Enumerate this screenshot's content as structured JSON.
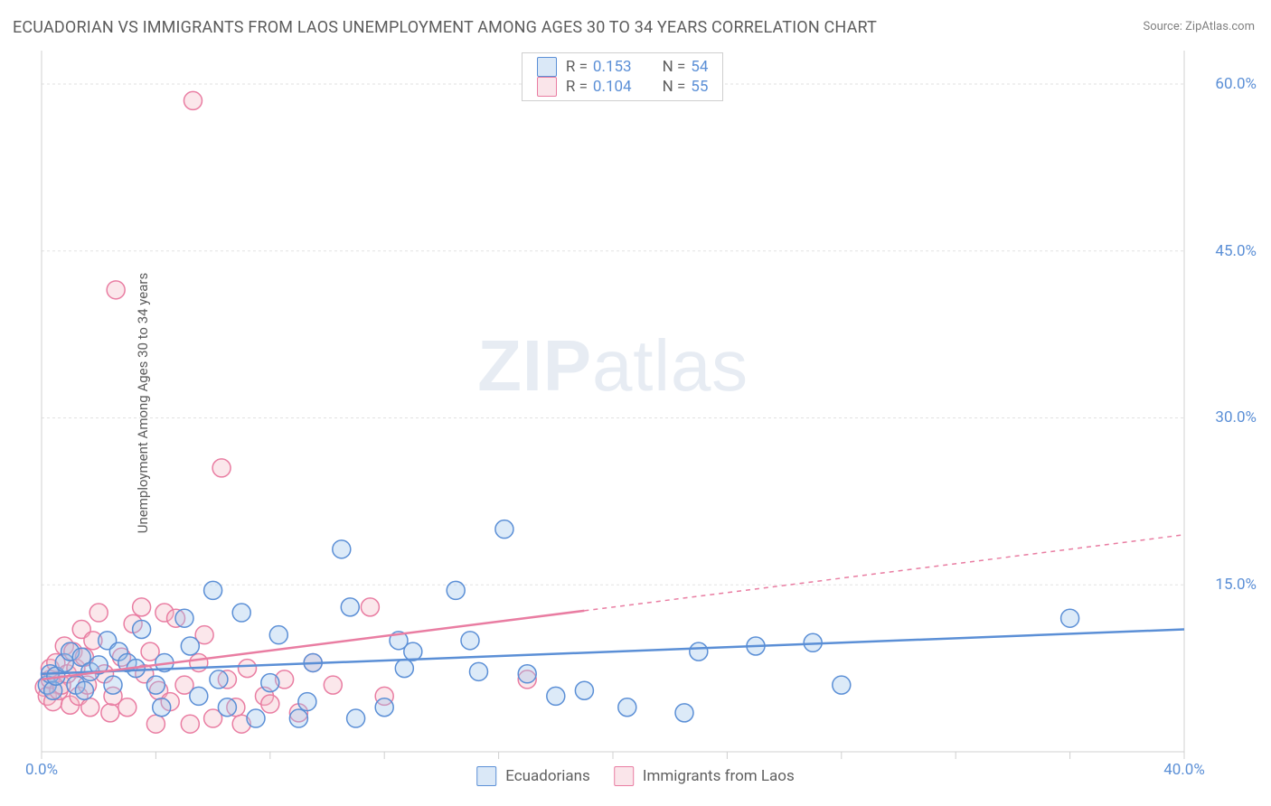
{
  "title": "ECUADORIAN VS IMMIGRANTS FROM LAOS UNEMPLOYMENT AMONG AGES 30 TO 34 YEARS CORRELATION CHART",
  "source": "Source: ZipAtlas.com",
  "ylabel": "Unemployment Among Ages 30 to 34 years",
  "watermark": {
    "bold": "ZIP",
    "rest": "atlas"
  },
  "chart": {
    "type": "scatter",
    "xlim": [
      0,
      40
    ],
    "ylim": [
      0,
      63
    ],
    "xticks_positions": [
      0,
      4,
      8,
      12,
      16,
      20,
      24,
      28,
      32,
      36,
      40
    ],
    "xtick_labels": {
      "0": "0.0%",
      "40": "40.0%"
    },
    "yticks": [
      {
        "v": 15,
        "label": "15.0%"
      },
      {
        "v": 30,
        "label": "30.0%"
      },
      {
        "v": 45,
        "label": "45.0%"
      },
      {
        "v": 60,
        "label": "60.0%"
      }
    ],
    "background_color": "#ffffff",
    "grid_color": "#e2e2e2",
    "axis_color": "#d0d0d0",
    "tick_label_color": "#5b8fd6",
    "point_radius": 10,
    "series": [
      {
        "name": "Ecuadorians",
        "color_fill": "#9cc2ea",
        "color_stroke": "#5b8fd6",
        "R_label": "R =",
        "R": "0.153",
        "N_label": "N =",
        "N": "54",
        "trend": {
          "x1": 0,
          "y1": 7.0,
          "x2": 40,
          "y2": 11.0,
          "solid_to_x": 40
        },
        "points": [
          [
            0.2,
            6.0
          ],
          [
            0.3,
            7.0
          ],
          [
            0.4,
            5.5
          ],
          [
            0.5,
            6.8
          ],
          [
            0.8,
            8.0
          ],
          [
            1.0,
            9.0
          ],
          [
            1.2,
            6.0
          ],
          [
            1.4,
            8.5
          ],
          [
            1.5,
            5.5
          ],
          [
            1.7,
            7.2
          ],
          [
            2.0,
            7.8
          ],
          [
            2.3,
            10.0
          ],
          [
            2.5,
            6.0
          ],
          [
            2.7,
            9.0
          ],
          [
            3.0,
            8.0
          ],
          [
            3.3,
            7.5
          ],
          [
            3.5,
            11.0
          ],
          [
            4.0,
            6.0
          ],
          [
            4.2,
            4.0
          ],
          [
            4.3,
            8.0
          ],
          [
            5.0,
            12.0
          ],
          [
            5.2,
            9.5
          ],
          [
            5.5,
            5.0
          ],
          [
            6.0,
            14.5
          ],
          [
            6.2,
            6.5
          ],
          [
            6.5,
            4.0
          ],
          [
            7.0,
            12.5
          ],
          [
            7.5,
            3.0
          ],
          [
            8.0,
            6.2
          ],
          [
            8.3,
            10.5
          ],
          [
            9.0,
            3.0
          ],
          [
            9.3,
            4.5
          ],
          [
            9.5,
            8.0
          ],
          [
            10.5,
            18.2
          ],
          [
            10.8,
            13.0
          ],
          [
            11.0,
            3.0
          ],
          [
            12.0,
            4.0
          ],
          [
            12.5,
            10.0
          ],
          [
            12.7,
            7.5
          ],
          [
            13.0,
            9.0
          ],
          [
            14.5,
            14.5
          ],
          [
            15.0,
            10.0
          ],
          [
            15.3,
            7.2
          ],
          [
            16.2,
            20.0
          ],
          [
            17.0,
            7.0
          ],
          [
            18.0,
            5.0
          ],
          [
            19.0,
            5.5
          ],
          [
            20.5,
            4.0
          ],
          [
            22.5,
            3.5
          ],
          [
            23.0,
            9.0
          ],
          [
            25.0,
            9.5
          ],
          [
            27.0,
            9.8
          ],
          [
            28.0,
            6.0
          ],
          [
            36.0,
            12.0
          ]
        ]
      },
      {
        "name": "Immigrants from Laos",
        "color_fill": "#f3b9c7",
        "color_stroke": "#e97da2",
        "R_label": "R =",
        "R": "0.104",
        "N_label": "N =",
        "N": "55",
        "trend": {
          "x1": 0,
          "y1": 6.5,
          "x2": 40,
          "y2": 19.5,
          "solid_to_x": 19
        },
        "points": [
          [
            0.1,
            5.8
          ],
          [
            0.2,
            5.0
          ],
          [
            0.3,
            6.5
          ],
          [
            0.3,
            7.5
          ],
          [
            0.4,
            4.5
          ],
          [
            0.5,
            8.0
          ],
          [
            0.6,
            5.5
          ],
          [
            0.7,
            6.0
          ],
          [
            0.8,
            9.5
          ],
          [
            0.9,
            7.0
          ],
          [
            1.0,
            4.2
          ],
          [
            1.1,
            9.0
          ],
          [
            1.2,
            7.5
          ],
          [
            1.3,
            5.0
          ],
          [
            1.4,
            11.0
          ],
          [
            1.5,
            8.5
          ],
          [
            1.6,
            6.0
          ],
          [
            1.7,
            4.0
          ],
          [
            1.8,
            10.0
          ],
          [
            2.0,
            12.5
          ],
          [
            2.2,
            7.0
          ],
          [
            2.4,
            3.5
          ],
          [
            2.5,
            5.0
          ],
          [
            2.6,
            41.5
          ],
          [
            2.8,
            8.5
          ],
          [
            3.0,
            4.0
          ],
          [
            3.2,
            11.5
          ],
          [
            3.5,
            13.0
          ],
          [
            3.6,
            7.0
          ],
          [
            3.8,
            9.0
          ],
          [
            4.0,
            2.5
          ],
          [
            4.1,
            5.5
          ],
          [
            4.3,
            12.5
          ],
          [
            4.5,
            4.5
          ],
          [
            4.7,
            12.0
          ],
          [
            5.0,
            6.0
          ],
          [
            5.2,
            2.5
          ],
          [
            5.3,
            58.5
          ],
          [
            5.5,
            8.0
          ],
          [
            5.7,
            10.5
          ],
          [
            6.0,
            3.0
          ],
          [
            6.3,
            25.5
          ],
          [
            6.5,
            6.5
          ],
          [
            6.8,
            4.0
          ],
          [
            7.0,
            2.5
          ],
          [
            7.2,
            7.5
          ],
          [
            7.8,
            5.0
          ],
          [
            8.0,
            4.3
          ],
          [
            8.5,
            6.5
          ],
          [
            9.0,
            3.5
          ],
          [
            9.5,
            8.0
          ],
          [
            10.2,
            6.0
          ],
          [
            11.5,
            13.0
          ],
          [
            12.0,
            5.0
          ],
          [
            17.0,
            6.5
          ]
        ]
      }
    ]
  },
  "legend_top_pos": {
    "left_pct": 42,
    "top_pct": 0
  },
  "legend_bottom": [
    {
      "series": 0
    },
    {
      "series": 1
    }
  ]
}
